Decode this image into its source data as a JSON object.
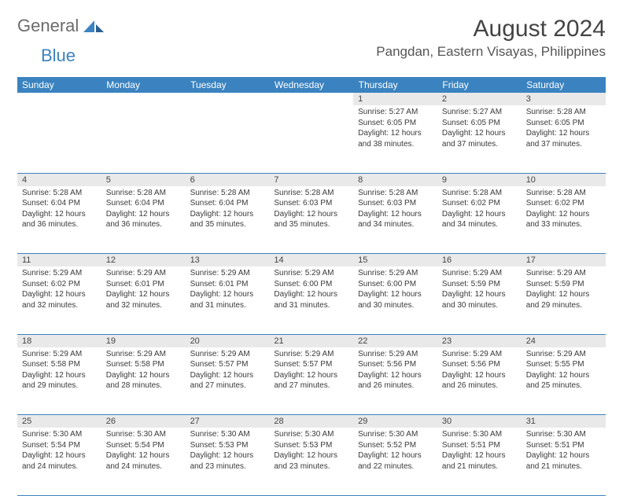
{
  "logo": {
    "text1": "General",
    "text2": "Blue"
  },
  "title": "August 2024",
  "location": "Pangdan, Eastern Visayas, Philippines",
  "colors": {
    "header_bg": "#3b83c0",
    "header_text": "#ffffff",
    "daynum_bg": "#e9e9e9",
    "rule": "#3b83c0",
    "title_color": "#444444",
    "location_color": "#555555",
    "logo_gray": "#6b6b6b",
    "logo_blue": "#3b83c0"
  },
  "weekdays": [
    "Sunday",
    "Monday",
    "Tuesday",
    "Wednesday",
    "Thursday",
    "Friday",
    "Saturday"
  ],
  "weeks": [
    [
      null,
      null,
      null,
      null,
      {
        "n": "1",
        "sunrise": "5:27 AM",
        "sunset": "6:05 PM",
        "dh": "12",
        "dm": "38"
      },
      {
        "n": "2",
        "sunrise": "5:27 AM",
        "sunset": "6:05 PM",
        "dh": "12",
        "dm": "37"
      },
      {
        "n": "3",
        "sunrise": "5:28 AM",
        "sunset": "6:05 PM",
        "dh": "12",
        "dm": "37"
      }
    ],
    [
      {
        "n": "4",
        "sunrise": "5:28 AM",
        "sunset": "6:04 PM",
        "dh": "12",
        "dm": "36"
      },
      {
        "n": "5",
        "sunrise": "5:28 AM",
        "sunset": "6:04 PM",
        "dh": "12",
        "dm": "36"
      },
      {
        "n": "6",
        "sunrise": "5:28 AM",
        "sunset": "6:04 PM",
        "dh": "12",
        "dm": "35"
      },
      {
        "n": "7",
        "sunrise": "5:28 AM",
        "sunset": "6:03 PM",
        "dh": "12",
        "dm": "35"
      },
      {
        "n": "8",
        "sunrise": "5:28 AM",
        "sunset": "6:03 PM",
        "dh": "12",
        "dm": "34"
      },
      {
        "n": "9",
        "sunrise": "5:28 AM",
        "sunset": "6:02 PM",
        "dh": "12",
        "dm": "34"
      },
      {
        "n": "10",
        "sunrise": "5:28 AM",
        "sunset": "6:02 PM",
        "dh": "12",
        "dm": "33"
      }
    ],
    [
      {
        "n": "11",
        "sunrise": "5:29 AM",
        "sunset": "6:02 PM",
        "dh": "12",
        "dm": "32"
      },
      {
        "n": "12",
        "sunrise": "5:29 AM",
        "sunset": "6:01 PM",
        "dh": "12",
        "dm": "32"
      },
      {
        "n": "13",
        "sunrise": "5:29 AM",
        "sunset": "6:01 PM",
        "dh": "12",
        "dm": "31"
      },
      {
        "n": "14",
        "sunrise": "5:29 AM",
        "sunset": "6:00 PM",
        "dh": "12",
        "dm": "31"
      },
      {
        "n": "15",
        "sunrise": "5:29 AM",
        "sunset": "6:00 PM",
        "dh": "12",
        "dm": "30"
      },
      {
        "n": "16",
        "sunrise": "5:29 AM",
        "sunset": "5:59 PM",
        "dh": "12",
        "dm": "30"
      },
      {
        "n": "17",
        "sunrise": "5:29 AM",
        "sunset": "5:59 PM",
        "dh": "12",
        "dm": "29"
      }
    ],
    [
      {
        "n": "18",
        "sunrise": "5:29 AM",
        "sunset": "5:58 PM",
        "dh": "12",
        "dm": "29"
      },
      {
        "n": "19",
        "sunrise": "5:29 AM",
        "sunset": "5:58 PM",
        "dh": "12",
        "dm": "28"
      },
      {
        "n": "20",
        "sunrise": "5:29 AM",
        "sunset": "5:57 PM",
        "dh": "12",
        "dm": "27"
      },
      {
        "n": "21",
        "sunrise": "5:29 AM",
        "sunset": "5:57 PM",
        "dh": "12",
        "dm": "27"
      },
      {
        "n": "22",
        "sunrise": "5:29 AM",
        "sunset": "5:56 PM",
        "dh": "12",
        "dm": "26"
      },
      {
        "n": "23",
        "sunrise": "5:29 AM",
        "sunset": "5:56 PM",
        "dh": "12",
        "dm": "26"
      },
      {
        "n": "24",
        "sunrise": "5:29 AM",
        "sunset": "5:55 PM",
        "dh": "12",
        "dm": "25"
      }
    ],
    [
      {
        "n": "25",
        "sunrise": "5:30 AM",
        "sunset": "5:54 PM",
        "dh": "12",
        "dm": "24"
      },
      {
        "n": "26",
        "sunrise": "5:30 AM",
        "sunset": "5:54 PM",
        "dh": "12",
        "dm": "24"
      },
      {
        "n": "27",
        "sunrise": "5:30 AM",
        "sunset": "5:53 PM",
        "dh": "12",
        "dm": "23"
      },
      {
        "n": "28",
        "sunrise": "5:30 AM",
        "sunset": "5:53 PM",
        "dh": "12",
        "dm": "23"
      },
      {
        "n": "29",
        "sunrise": "5:30 AM",
        "sunset": "5:52 PM",
        "dh": "12",
        "dm": "22"
      },
      {
        "n": "30",
        "sunrise": "5:30 AM",
        "sunset": "5:51 PM",
        "dh": "12",
        "dm": "21"
      },
      {
        "n": "31",
        "sunrise": "5:30 AM",
        "sunset": "5:51 PM",
        "dh": "12",
        "dm": "21"
      }
    ]
  ],
  "labels": {
    "sunrise": "Sunrise",
    "sunset": "Sunset",
    "daylight": "Daylight",
    "hours": "hours",
    "and": "and",
    "minutes": "minutes."
  }
}
